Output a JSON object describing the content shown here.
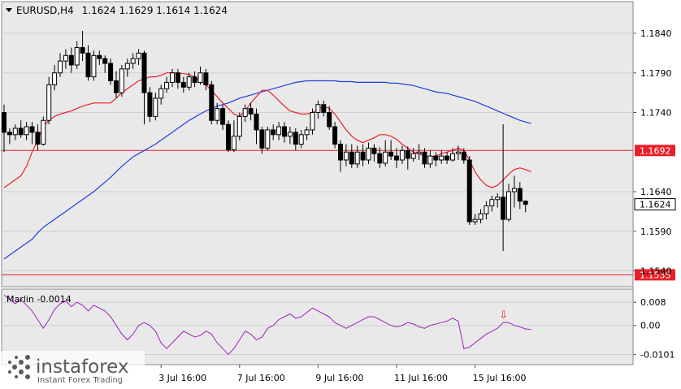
{
  "header": {
    "symbol_label": "EURUSD,H4",
    "ohlc": "1.1624 1.1629 1.1614 1.1624"
  },
  "colors": {
    "background": "#ffffff",
    "panel": "#e9e9e9",
    "bull": "#ffffff",
    "bear": "#000000",
    "ma_fast": "#e8202a",
    "ma_slow": "#1f3fe0",
    "oscillator": "#a020c0",
    "level": "#e8202a",
    "marker": "#e8202a"
  },
  "chart_data": [
    {
      "type": "candlestick",
      "title": "EURUSD,H4",
      "ylim": [
        1.152,
        1.188
      ],
      "y_ticks": [
        "1.1840",
        "1.1790",
        "1.1740",
        "1.1640",
        "1.1590",
        "1.1540"
      ],
      "x_ticks": [
        "3 Jul 16:00",
        "7 Jul 16:00",
        "9 Jul 16:00",
        "11 Jul 16:00",
        "15 Jul 16:00"
      ],
      "current_price": "1.1624",
      "levels": [
        {
          "label": "1.1692",
          "value": 1.1692
        },
        {
          "label": "1.1535",
          "value": 1.1535
        }
      ],
      "candles": [
        [
          1.174,
          1.1715,
          1.175,
          1.169
        ],
        [
          1.1715,
          1.1712,
          1.172,
          1.17
        ],
        [
          1.1712,
          1.172,
          1.1725,
          1.1705
        ],
        [
          1.172,
          1.1712,
          1.173,
          1.1708
        ],
        [
          1.1712,
          1.1722,
          1.1728,
          1.1705
        ],
        [
          1.1722,
          1.1715,
          1.1728,
          1.17
        ],
        [
          1.1715,
          1.17,
          1.1725,
          1.1692
        ],
        [
          1.17,
          1.173,
          1.1735,
          1.1698
        ],
        [
          1.173,
          1.1775,
          1.1785,
          1.1725
        ],
        [
          1.1775,
          1.179,
          1.18,
          1.1768
        ],
        [
          1.179,
          1.1805,
          1.1815,
          1.1785
        ],
        [
          1.1805,
          1.1812,
          1.182,
          1.1795
        ],
        [
          1.1812,
          1.18,
          1.1822,
          1.179
        ],
        [
          1.18,
          1.1822,
          1.183,
          1.1795
        ],
        [
          1.1822,
          1.1815,
          1.1843,
          1.1805
        ],
        [
          1.1815,
          1.1785,
          1.1825,
          1.178
        ],
        [
          1.1785,
          1.1812,
          1.1818,
          1.178
        ],
        [
          1.1812,
          1.1808,
          1.1818,
          1.18
        ],
        [
          1.1808,
          1.1802,
          1.1812,
          1.179
        ],
        [
          1.1802,
          1.178,
          1.1808,
          1.1775
        ],
        [
          1.178,
          1.1765,
          1.1792,
          1.1758
        ],
        [
          1.1765,
          1.1795,
          1.18,
          1.176
        ],
        [
          1.1795,
          1.1802,
          1.1808,
          1.1785
        ],
        [
          1.1802,
          1.1808,
          1.1815,
          1.1795
        ],
        [
          1.1808,
          1.1815,
          1.182,
          1.18
        ],
        [
          1.1815,
          1.1765,
          1.1818,
          1.1725
        ],
        [
          1.1765,
          1.1735,
          1.1772,
          1.1728
        ],
        [
          1.1735,
          1.1758,
          1.1765,
          1.173
        ],
        [
          1.1758,
          1.177,
          1.1775,
          1.175
        ],
        [
          1.177,
          1.1778,
          1.1785,
          1.1765
        ],
        [
          1.1778,
          1.179,
          1.1795,
          1.1772
        ],
        [
          1.179,
          1.1778,
          1.1795,
          1.177
        ],
        [
          1.1778,
          1.1772,
          1.1785,
          1.1765
        ],
        [
          1.1772,
          1.1785,
          1.179,
          1.1768
        ],
        [
          1.1785,
          1.1778,
          1.1792,
          1.1772
        ],
        [
          1.1778,
          1.179,
          1.1798,
          1.1775
        ],
        [
          1.179,
          1.1775,
          1.1795,
          1.1768
        ],
        [
          1.1775,
          1.173,
          1.178,
          1.1725
        ],
        [
          1.173,
          1.1745,
          1.1752,
          1.1725
        ],
        [
          1.1745,
          1.1725,
          1.175,
          1.1718
        ],
        [
          1.1725,
          1.1693,
          1.173,
          1.169
        ],
        [
          1.1693,
          1.171,
          1.173,
          1.169
        ],
        [
          1.171,
          1.1735,
          1.174,
          1.1705
        ],
        [
          1.1735,
          1.1745,
          1.175,
          1.1728
        ],
        [
          1.1745,
          1.1738,
          1.1752,
          1.173
        ],
        [
          1.1738,
          1.1718,
          1.1745,
          1.17
        ],
        [
          1.1718,
          1.1695,
          1.1722,
          1.1688
        ],
        [
          1.1695,
          1.1718,
          1.1722,
          1.1692
        ],
        [
          1.1718,
          1.1712,
          1.1725,
          1.1705
        ],
        [
          1.1712,
          1.1722,
          1.1728,
          1.1705
        ],
        [
          1.1722,
          1.171,
          1.1728,
          1.1702
        ],
        [
          1.171,
          1.1715,
          1.1722,
          1.17
        ],
        [
          1.1715,
          1.17,
          1.172,
          1.1692
        ],
        [
          1.17,
          1.1712,
          1.1718,
          1.1695
        ],
        [
          1.1712,
          1.1718,
          1.1722,
          1.1705
        ],
        [
          1.1718,
          1.174,
          1.1745,
          1.1712
        ],
        [
          1.174,
          1.175,
          1.1755,
          1.1732
        ],
        [
          1.175,
          1.174,
          1.1755,
          1.1735
        ],
        [
          1.174,
          1.1722,
          1.1748,
          1.1718
        ],
        [
          1.1722,
          1.17,
          1.1728,
          1.1695
        ],
        [
          1.17,
          1.168,
          1.1705,
          1.1665
        ],
        [
          1.168,
          1.169,
          1.17,
          1.1672
        ],
        [
          1.169,
          1.1675,
          1.17,
          1.167
        ],
        [
          1.1675,
          1.169,
          1.1698,
          1.167
        ],
        [
          1.169,
          1.168,
          1.17,
          1.1672
        ],
        [
          1.168,
          1.1695,
          1.1702,
          1.1675
        ],
        [
          1.1695,
          1.1688,
          1.17,
          1.1678
        ],
        [
          1.1688,
          1.1676,
          1.1696,
          1.167
        ],
        [
          1.1676,
          1.169,
          1.1705,
          1.1672
        ],
        [
          1.169,
          1.1685,
          1.1705,
          1.168
        ],
        [
          1.1685,
          1.168,
          1.1695,
          1.167
        ],
        [
          1.168,
          1.1692,
          1.1698,
          1.1675
        ],
        [
          1.1692,
          1.1682,
          1.1697,
          1.1668
        ],
        [
          1.1682,
          1.1688,
          1.1695,
          1.1678
        ],
        [
          1.1688,
          1.169,
          1.17,
          1.168
        ],
        [
          1.169,
          1.1675,
          1.1695,
          1.167
        ],
        [
          1.1675,
          1.1685,
          1.1692,
          1.167
        ],
        [
          1.1685,
          1.168,
          1.169,
          1.1672
        ],
        [
          1.168,
          1.1685,
          1.1692,
          1.1675
        ],
        [
          1.1685,
          1.168,
          1.169,
          1.1675
        ],
        [
          1.168,
          1.1688,
          1.1695,
          1.1678
        ],
        [
          1.1688,
          1.169,
          1.1698,
          1.168
        ],
        [
          1.169,
          1.168,
          1.1695,
          1.1675
        ],
        [
          1.168,
          1.1602,
          1.1685,
          1.1598
        ],
        [
          1.1602,
          1.1605,
          1.1612,
          1.1598
        ],
        [
          1.1605,
          1.1612,
          1.1618,
          1.16
        ],
        [
          1.1612,
          1.1622,
          1.1628,
          1.1605
        ],
        [
          1.1622,
          1.163,
          1.1635,
          1.1615
        ],
        [
          1.163,
          1.1633,
          1.1638,
          1.162
        ],
        [
          1.1633,
          1.1605,
          1.1725,
          1.1565
        ],
        [
          1.1605,
          1.164,
          1.165,
          1.1602
        ],
        [
          1.164,
          1.1644,
          1.166,
          1.162
        ],
        [
          1.1644,
          1.1628,
          1.1652,
          1.1618
        ],
        [
          1.1628,
          1.1624,
          1.1629,
          1.1614
        ]
      ],
      "ma_fast": [
        1.1645,
        1.165,
        1.1655,
        1.166,
        1.1672,
        1.169,
        1.1705,
        1.1722,
        1.173,
        1.1735,
        1.1738,
        1.174,
        1.1742,
        1.1745,
        1.1748,
        1.175,
        1.1752,
        1.1752,
        1.1752,
        1.1752,
        1.1758,
        1.1765,
        1.177,
        1.1775,
        1.178,
        1.1782,
        1.1785,
        1.1785,
        1.1787,
        1.179,
        1.179,
        1.179,
        1.1789,
        1.1788,
        1.1785,
        1.178,
        1.1775,
        1.1768,
        1.176,
        1.1752,
        1.1745,
        1.1738,
        1.1735,
        1.1742,
        1.1752,
        1.176,
        1.1768,
        1.1768,
        1.1762,
        1.1755,
        1.1748,
        1.1742,
        1.174,
        1.1738,
        1.1738,
        1.174,
        1.1744,
        1.1748,
        1.1745,
        1.1738,
        1.1728,
        1.1718,
        1.171,
        1.1705,
        1.1702,
        1.1705,
        1.1708,
        1.1712,
        1.1712,
        1.171,
        1.1706,
        1.17,
        1.1695,
        1.169,
        1.1688,
        1.1685,
        1.1684,
        1.1685,
        1.1688,
        1.169,
        1.1692,
        1.1695,
        1.1692,
        1.168,
        1.1665,
        1.1655,
        1.1648,
        1.1645,
        1.1648,
        1.1655,
        1.1662,
        1.1668,
        1.167,
        1.1668,
        1.1665
      ],
      "ma_slow": [
        1.1555,
        1.156,
        1.1565,
        1.157,
        1.1575,
        1.158,
        1.1588,
        1.1595,
        1.16,
        1.1605,
        1.161,
        1.1615,
        1.162,
        1.1625,
        1.163,
        1.1635,
        1.164,
        1.1646,
        1.1652,
        1.1658,
        1.1665,
        1.1672,
        1.1678,
        1.1684,
        1.1688,
        1.1692,
        1.1696,
        1.17,
        1.1705,
        1.171,
        1.1715,
        1.172,
        1.1725,
        1.173,
        1.1734,
        1.1738,
        1.1742,
        1.1745,
        1.1748,
        1.175,
        1.1752,
        1.1755,
        1.1758,
        1.176,
        1.1762,
        1.1764,
        1.1766,
        1.1768,
        1.177,
        1.1772,
        1.1774,
        1.1776,
        1.1778,
        1.1779,
        1.178,
        1.178,
        1.178,
        1.178,
        1.178,
        1.178,
        1.1779,
        1.1779,
        1.1779,
        1.1778,
        1.1778,
        1.1778,
        1.1778,
        1.1778,
        1.1778,
        1.1777,
        1.1777,
        1.1776,
        1.1775,
        1.1774,
        1.1772,
        1.177,
        1.1768,
        1.1766,
        1.1765,
        1.1764,
        1.1762,
        1.176,
        1.1758,
        1.1756,
        1.1754,
        1.1751,
        1.1748,
        1.1745,
        1.1742,
        1.1739,
        1.1736,
        1.1733,
        1.173,
        1.1728,
        1.1726
      ]
    },
    {
      "type": "line",
      "title": "Marlin -0.0014",
      "ylim": [
        -0.013,
        0.012
      ],
      "y_ticks": [
        {
          "label": "0.008",
          "value": 0.008
        },
        {
          "label": "0.00",
          "value": 0.0
        },
        {
          "label": "-0.0101",
          "value": -0.0101
        }
      ],
      "values": [
        0.0105,
        0.009,
        0.0075,
        0.009,
        0.007,
        0.005,
        0.002,
        -0.001,
        0.002,
        0.0055,
        0.0075,
        0.0085,
        0.0065,
        0.008,
        0.007,
        0.005,
        0.007,
        0.006,
        0.005,
        0.003,
        0.0,
        -0.003,
        -0.005,
        -0.003,
        0.0,
        0.001,
        0.0,
        -0.002,
        -0.006,
        -0.008,
        -0.006,
        -0.004,
        -0.002,
        -0.003,
        -0.004,
        -0.0035,
        -0.002,
        -0.003,
        -0.006,
        -0.008,
        -0.01,
        -0.008,
        -0.005,
        -0.002,
        -0.003,
        -0.005,
        -0.004,
        -0.001,
        0.0,
        0.002,
        0.003,
        0.004,
        0.0025,
        0.003,
        0.0045,
        0.006,
        0.005,
        0.004,
        0.003,
        0.001,
        0.0,
        -0.001,
        0.0,
        0.001,
        0.002,
        0.003,
        0.003,
        0.002,
        0.001,
        0.0,
        -0.0005,
        0.0,
        0.001,
        0.0005,
        -0.0005,
        -0.001,
        0.0,
        0.0005,
        0.001,
        0.0015,
        0.0025,
        0.0015,
        -0.008,
        -0.0075,
        -0.006,
        -0.0045,
        -0.003,
        -0.002,
        -0.001,
        0.001,
        0.001,
        0.0,
        -0.0005,
        -0.0012,
        -0.0014
      ],
      "marker": {
        "label": "⇩",
        "index": 89
      }
    }
  ],
  "watermark": {
    "brand": "instaforex",
    "tagline": "Instant Forex Trading"
  }
}
